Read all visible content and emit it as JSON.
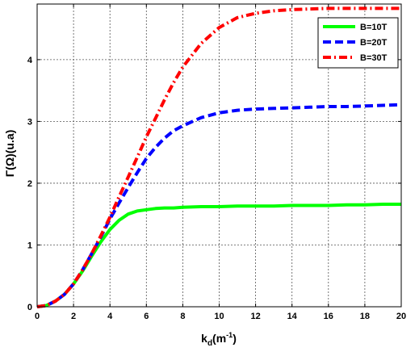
{
  "chart_data": {
    "type": "line",
    "title": "",
    "xlabel": "k",
    "xlabel_sub": "d",
    "xlabel_tail": "(m",
    "xlabel_sup": "-1",
    "xlabel_close": ")",
    "ylabel": "Γ(Ω)(u.a)",
    "xlim": [
      0,
      20
    ],
    "ylim": [
      0,
      4.9
    ],
    "xticks": [
      0,
      2,
      4,
      6,
      8,
      10,
      12,
      14,
      16,
      18,
      20
    ],
    "yticks": [
      0,
      1,
      2,
      3,
      4
    ],
    "grid": true,
    "legend_position": "top-right",
    "x": [
      0,
      0.5,
      1,
      1.5,
      2,
      2.5,
      3,
      3.5,
      4,
      4.5,
      5,
      5.5,
      6,
      6.5,
      7,
      7.5,
      8,
      9,
      10,
      11,
      12,
      13,
      14,
      15,
      16,
      17,
      18,
      19,
      20
    ],
    "series": [
      {
        "name": "B=10T",
        "color": "#00ff00",
        "style": "solid",
        "values": [
          0,
          0.02,
          0.09,
          0.2,
          0.37,
          0.58,
          0.82,
          1.05,
          1.25,
          1.4,
          1.5,
          1.55,
          1.57,
          1.59,
          1.6,
          1.6,
          1.61,
          1.62,
          1.62,
          1.63,
          1.63,
          1.63,
          1.64,
          1.64,
          1.64,
          1.65,
          1.65,
          1.66,
          1.66
        ]
      },
      {
        "name": "B=20T",
        "color": "#0000ff",
        "style": "dashed",
        "values": [
          0,
          0.02,
          0.09,
          0.2,
          0.37,
          0.6,
          0.86,
          1.13,
          1.42,
          1.68,
          1.93,
          2.17,
          2.4,
          2.58,
          2.73,
          2.85,
          2.93,
          3.06,
          3.14,
          3.18,
          3.2,
          3.21,
          3.22,
          3.23,
          3.24,
          3.24,
          3.25,
          3.26,
          3.27
        ]
      },
      {
        "name": "B=30T",
        "color": "#ff0000",
        "style": "dashdot",
        "values": [
          0,
          0.02,
          0.09,
          0.2,
          0.37,
          0.6,
          0.86,
          1.15,
          1.45,
          1.78,
          2.1,
          2.42,
          2.75,
          3.05,
          3.35,
          3.63,
          3.88,
          4.26,
          4.52,
          4.68,
          4.75,
          4.79,
          4.81,
          4.82,
          4.83,
          4.83,
          4.83,
          4.83,
          4.83
        ]
      }
    ]
  }
}
